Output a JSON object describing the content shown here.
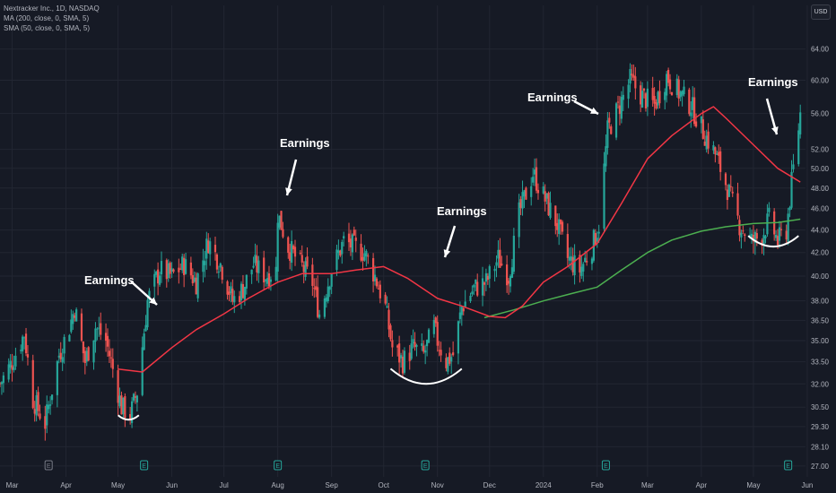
{
  "header": {
    "title": "Nextracker Inc., 1D, NASDAQ",
    "indicator_1": "MA (200, close, 0, SMA, 5)",
    "indicator_2": "SMA (50, close, 0, SMA, 5)",
    "currency": "USD"
  },
  "annotations": [
    "Earnings",
    "Earnings",
    "Earnings",
    "Earnings",
    "Earnings"
  ],
  "colors": {
    "background": "#161a25",
    "up": "#26a69a",
    "down": "#ef5350",
    "ma200": "#4caf50",
    "sma50": "#f23645",
    "grid": "#222632",
    "axis_text": "#b2b5be",
    "annotation": "#ffffff"
  },
  "chart_data": {
    "type": "candlestick",
    "title": "Nextracker Inc., 1D, NASDAQ",
    "x_range": [
      "2023-02-22",
      "2024-05-31"
    ],
    "y_range": [
      26.4,
      67.5
    ],
    "y_scale": "log",
    "grid": true,
    "x_ticks": [
      {
        "label": "Mar",
        "date": "2023-03-01"
      },
      {
        "label": "Apr",
        "date": "2023-04-01"
      },
      {
        "label": "May",
        "date": "2023-05-01"
      },
      {
        "label": "Jun",
        "date": "2023-06-01"
      },
      {
        "label": "Jul",
        "date": "2023-07-01"
      },
      {
        "label": "Aug",
        "date": "2023-08-01"
      },
      {
        "label": "Sep",
        "date": "2023-09-01"
      },
      {
        "label": "Oct",
        "date": "2023-10-01"
      },
      {
        "label": "Nov",
        "date": "2023-11-01"
      },
      {
        "label": "Dec",
        "date": "2023-12-01"
      },
      {
        "label": "2024",
        "date": "2024-01-01"
      },
      {
        "label": "Feb",
        "date": "2024-02-01"
      },
      {
        "label": "Mar",
        "date": "2024-03-01"
      },
      {
        "label": "Apr",
        "date": "2024-04-01"
      },
      {
        "label": "May",
        "date": "2024-05-01"
      },
      {
        "label": "Jun",
        "date": "2024-06-01"
      }
    ],
    "y_ticks": [
      "64.00",
      "60.00",
      "56.00",
      "52.00",
      "50.00",
      "48.00",
      "46.00",
      "44.00",
      "42.00",
      "40.00",
      "38.00",
      "36.50",
      "35.00",
      "33.50",
      "32.00",
      "30.50",
      "29.30",
      "28.10",
      "27.00"
    ],
    "price_anchors": [
      [
        "2023-02-22",
        32
      ],
      [
        "2023-03-01",
        33.5
      ],
      [
        "2023-03-08",
        35.5
      ],
      [
        "2023-03-13",
        31
      ],
      [
        "2023-03-20",
        29.5
      ],
      [
        "2023-03-28",
        34
      ],
      [
        "2023-04-03",
        36
      ],
      [
        "2023-04-06",
        37.5
      ],
      [
        "2023-04-12",
        33.5
      ],
      [
        "2023-04-18",
        36
      ],
      [
        "2023-04-24",
        35
      ],
      [
        "2023-04-28",
        33
      ],
      [
        "2023-05-03",
        30.5
      ],
      [
        "2023-05-08",
        30
      ],
      [
        "2023-05-12",
        31.5
      ],
      [
        "2023-05-18",
        38
      ],
      [
        "2023-05-25",
        40.5
      ],
      [
        "2023-06-01",
        40
      ],
      [
        "2023-06-08",
        41
      ],
      [
        "2023-06-15",
        39.5
      ],
      [
        "2023-06-22",
        43
      ],
      [
        "2023-06-29",
        41
      ],
      [
        "2023-07-06",
        38
      ],
      [
        "2023-07-12",
        39
      ],
      [
        "2023-07-18",
        41
      ],
      [
        "2023-07-25",
        40
      ],
      [
        "2023-07-31",
        40.5
      ],
      [
        "2023-08-01",
        45.5
      ],
      [
        "2023-08-07",
        42.5
      ],
      [
        "2023-08-14",
        41
      ],
      [
        "2023-08-21",
        39.5
      ],
      [
        "2023-08-25",
        37
      ],
      [
        "2023-09-01",
        40.5
      ],
      [
        "2023-09-08",
        43
      ],
      [
        "2023-09-14",
        42.5
      ],
      [
        "2023-09-20",
        42
      ],
      [
        "2023-09-26",
        40
      ],
      [
        "2023-10-02",
        37.5
      ],
      [
        "2023-10-06",
        34.5
      ],
      [
        "2023-10-12",
        33.5
      ],
      [
        "2023-10-18",
        34.5
      ],
      [
        "2023-10-24",
        34
      ],
      [
        "2023-10-30",
        36
      ],
      [
        "2023-11-01",
        35
      ],
      [
        "2023-11-06",
        33.5
      ],
      [
        "2023-11-10",
        34
      ],
      [
        "2023-11-15",
        37.5
      ],
      [
        "2023-11-22",
        39
      ],
      [
        "2023-11-29",
        39.5
      ],
      [
        "2023-12-06",
        41.5
      ],
      [
        "2023-12-12",
        40
      ],
      [
        "2023-12-18",
        45.5
      ],
      [
        "2023-12-26",
        49.5
      ],
      [
        "2024-01-03",
        46.5
      ],
      [
        "2024-01-09",
        44.5
      ],
      [
        "2024-01-15",
        41.5
      ],
      [
        "2024-01-22",
        40.5
      ],
      [
        "2024-01-29",
        42.5
      ],
      [
        "2024-02-02",
        44.5
      ],
      [
        "2024-02-07",
        54
      ],
      [
        "2024-02-14",
        57
      ],
      [
        "2024-02-20",
        60
      ],
      [
        "2024-02-27",
        58
      ],
      [
        "2024-03-05",
        57
      ],
      [
        "2024-03-12",
        60.5
      ],
      [
        "2024-03-19",
        58.5
      ],
      [
        "2024-03-26",
        57
      ],
      [
        "2024-04-02",
        54
      ],
      [
        "2024-04-09",
        51.5
      ],
      [
        "2024-04-16",
        48
      ],
      [
        "2024-04-23",
        44.5
      ],
      [
        "2024-04-30",
        43
      ],
      [
        "2024-05-06",
        43.5
      ],
      [
        "2024-05-10",
        45
      ],
      [
        "2024-05-15",
        43
      ],
      [
        "2024-05-20",
        44
      ],
      [
        "2024-05-23",
        48.5
      ],
      [
        "2024-05-28",
        56
      ]
    ],
    "sma50": [
      [
        "2023-05-01",
        33
      ],
      [
        "2023-05-15",
        32.8
      ],
      [
        "2023-06-01",
        34.5
      ],
      [
        "2023-06-15",
        35.8
      ],
      [
        "2023-07-01",
        37
      ],
      [
        "2023-07-15",
        38.2
      ],
      [
        "2023-08-01",
        39.5
      ],
      [
        "2023-08-15",
        40.2
      ],
      [
        "2023-09-01",
        40.2
      ],
      [
        "2023-09-15",
        40.5
      ],
      [
        "2023-10-01",
        40.8
      ],
      [
        "2023-10-15",
        39.8
      ],
      [
        "2023-11-01",
        38.2
      ],
      [
        "2023-11-15",
        37.6
      ],
      [
        "2023-12-01",
        36.8
      ],
      [
        "2023-12-10",
        36.7
      ],
      [
        "2023-12-20",
        37.6
      ],
      [
        "2024-01-01",
        39.5
      ],
      [
        "2024-01-15",
        40.8
      ],
      [
        "2024-02-01",
        42.8
      ],
      [
        "2024-02-15",
        46.5
      ],
      [
        "2024-03-01",
        51
      ],
      [
        "2024-03-15",
        53.5
      ],
      [
        "2024-04-01",
        56
      ],
      [
        "2024-04-08",
        56.8
      ],
      [
        "2024-04-15",
        55.5
      ],
      [
        "2024-05-01",
        52.5
      ],
      [
        "2024-05-15",
        50
      ],
      [
        "2024-05-28",
        48.6
      ]
    ],
    "ma200": [
      [
        "2023-11-28",
        36.7
      ],
      [
        "2023-12-15",
        37.3
      ],
      [
        "2024-01-01",
        38
      ],
      [
        "2024-01-15",
        38.5
      ],
      [
        "2024-02-01",
        39.1
      ],
      [
        "2024-02-15",
        40.5
      ],
      [
        "2024-03-01",
        42
      ],
      [
        "2024-03-15",
        43.1
      ],
      [
        "2024-04-01",
        43.9
      ],
      [
        "2024-04-15",
        44.3
      ],
      [
        "2024-05-01",
        44.6
      ],
      [
        "2024-05-15",
        44.7
      ],
      [
        "2024-05-28",
        45
      ]
    ],
    "earnings_markers": [
      "2023-03-22",
      "2023-05-16",
      "2023-08-01",
      "2023-10-25",
      "2024-02-06",
      "2024-05-21"
    ]
  }
}
